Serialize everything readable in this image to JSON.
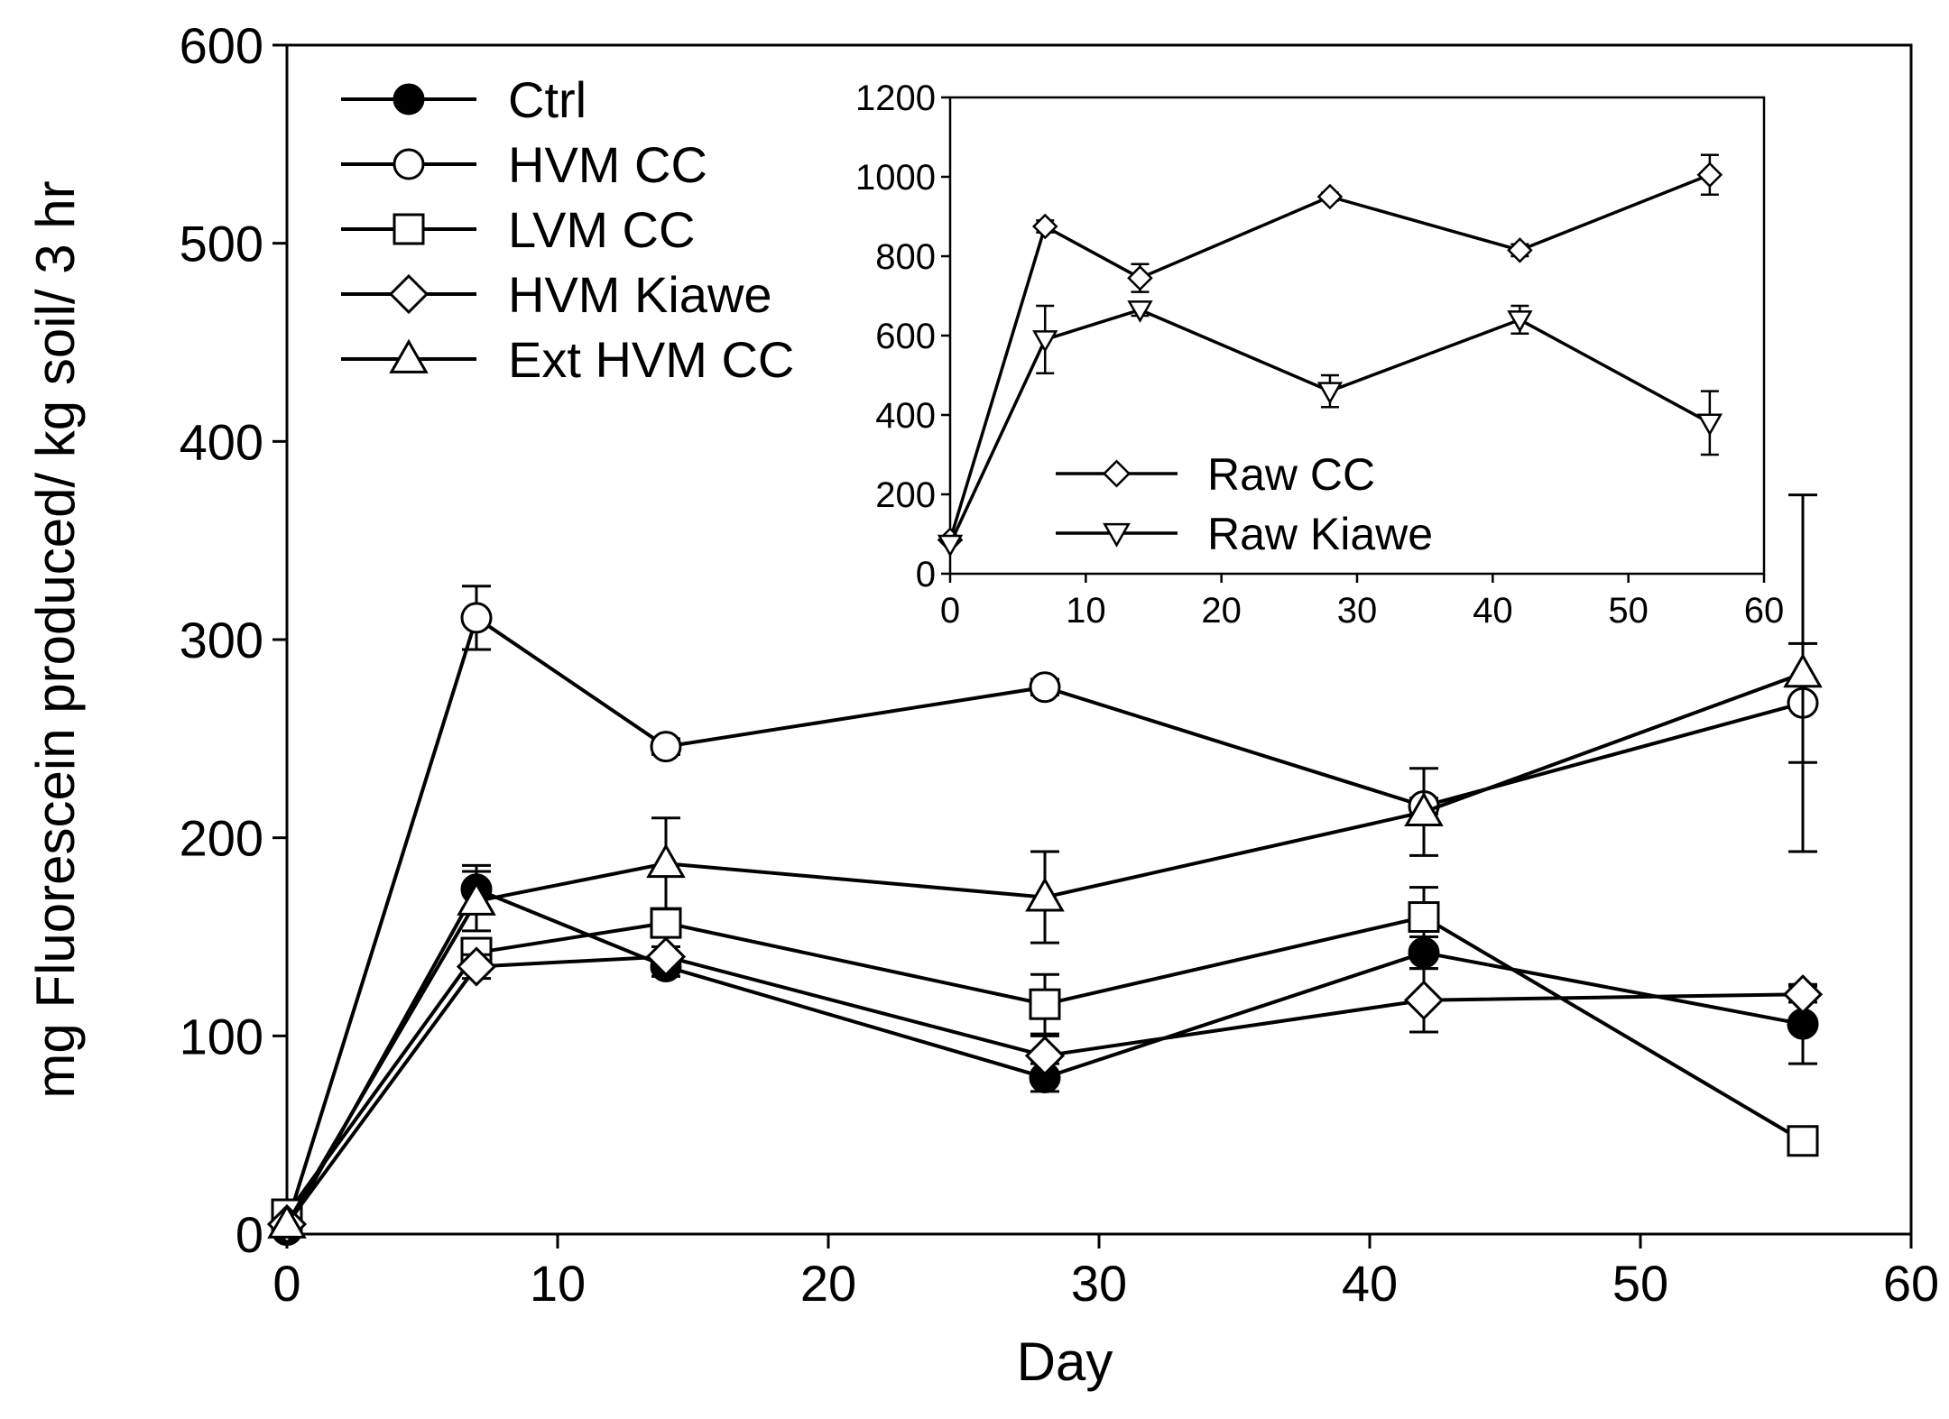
{
  "chart_data": [
    {
      "id": "main",
      "type": "line",
      "xlabel": "Day",
      "ylabel": "mg Fluorescein produced/ kg soil/ 3 hr",
      "xlim": [
        0,
        60
      ],
      "ylim": [
        0,
        600
      ],
      "xticks": [
        0,
        10,
        20,
        30,
        40,
        50,
        60
      ],
      "yticks": [
        0,
        100,
        200,
        300,
        400,
        500,
        600
      ],
      "xtick_labels": [
        "0",
        "10",
        "20",
        "30",
        "40",
        "50",
        "60"
      ],
      "ytick_labels": [
        "0",
        "100",
        "200",
        "300",
        "400",
        "500",
        "600"
      ],
      "legend_position": "top-left",
      "series": [
        {
          "name": "Ctrl",
          "marker": "filled-circle",
          "x": [
            0,
            7,
            14,
            28,
            42,
            56
          ],
          "y": [
            2,
            174,
            135,
            79,
            142,
            106
          ],
          "err": [
            0,
            12,
            5,
            7,
            8,
            20
          ]
        },
        {
          "name": "HVM CC",
          "marker": "open-circle",
          "x": [
            0,
            7,
            14,
            28,
            42,
            56
          ],
          "y": [
            5,
            311,
            246,
            276,
            216,
            268
          ],
          "err": [
            0,
            16,
            4,
            4,
            4,
            30
          ]
        },
        {
          "name": "LVM CC",
          "marker": "open-square",
          "x": [
            0,
            7,
            14,
            28,
            42,
            56
          ],
          "y": [
            10,
            142,
            157,
            116,
            160,
            47
          ],
          "err": [
            0,
            7,
            5,
            15,
            15,
            5
          ]
        },
        {
          "name": "HVM Kiawe",
          "marker": "open-diamond",
          "x": [
            0,
            7,
            14,
            28,
            42,
            56
          ],
          "y": [
            5,
            135,
            140,
            90,
            118,
            121
          ],
          "err": [
            0,
            6,
            5,
            10,
            16,
            4
          ]
        },
        {
          "name": "Ext HVM CC",
          "marker": "open-triangle-up",
          "x": [
            0,
            7,
            14,
            28,
            42,
            56
          ],
          "y": [
            5,
            168,
            187,
            170,
            213,
            283
          ],
          "err": [
            0,
            15,
            23,
            23,
            22,
            90
          ]
        }
      ]
    },
    {
      "id": "inset",
      "type": "line",
      "xlabel": "",
      "ylabel": "",
      "xlim": [
        0,
        60
      ],
      "ylim": [
        0,
        1200
      ],
      "xticks": [
        0,
        10,
        20,
        30,
        40,
        50,
        60
      ],
      "yticks": [
        0,
        200,
        400,
        600,
        800,
        1000,
        1200
      ],
      "xtick_labels": [
        "0",
        "10",
        "20",
        "30",
        "40",
        "50",
        "60"
      ],
      "ytick_labels": [
        "0",
        "200",
        "400",
        "600",
        "800",
        "1000",
        "1200"
      ],
      "legend_position": "bottom-left",
      "series": [
        {
          "name": "Raw CC",
          "marker": "open-diamond",
          "x": [
            0,
            7,
            14,
            28,
            42,
            56
          ],
          "y": [
            85,
            875,
            745,
            950,
            815,
            1005
          ],
          "err": [
            0,
            15,
            35,
            10,
            15,
            50
          ]
        },
        {
          "name": "Raw Kiawe",
          "marker": "open-triangle-down",
          "x": [
            0,
            7,
            14,
            28,
            42,
            56
          ],
          "y": [
            75,
            590,
            665,
            460,
            640,
            380
          ],
          "err": [
            0,
            85,
            15,
            40,
            35,
            80
          ]
        }
      ]
    }
  ]
}
